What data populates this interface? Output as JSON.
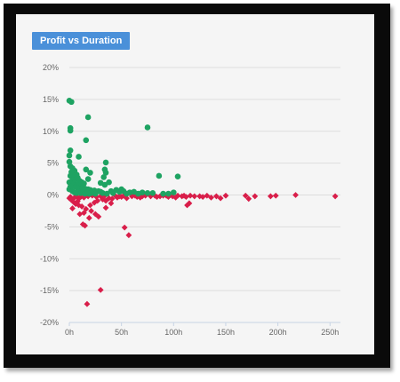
{
  "chart_data": {
    "type": "scatter",
    "title": "Profit vs Duration",
    "xlabel": "",
    "ylabel": "",
    "xlim": [
      0,
      260
    ],
    "ylim": [
      -20,
      20
    ],
    "x_ticks": [
      0,
      50,
      100,
      150,
      200,
      250
    ],
    "x_tick_labels": [
      "0h",
      "50h",
      "100h",
      "150h",
      "200h",
      "250h"
    ],
    "y_ticks": [
      20,
      15,
      10,
      5,
      0,
      -5,
      -10,
      -15,
      -20
    ],
    "y_tick_labels": [
      "20%",
      "15%",
      "10%",
      "5%",
      "0%",
      "-5%",
      "-10%",
      "-15%",
      "-20%"
    ],
    "grid": "horizontal",
    "legend": "none",
    "series": [
      {
        "marker": "circle",
        "color": "#1ea362",
        "points": [
          [
            0,
            14.8
          ],
          [
            2,
            14.6
          ],
          [
            1,
            10.5
          ],
          [
            1,
            10.1
          ],
          [
            18,
            12.2
          ],
          [
            75,
            10.6
          ],
          [
            16,
            8.6
          ],
          [
            1,
            7.0
          ],
          [
            0,
            6.2
          ],
          [
            9,
            6.0
          ],
          [
            35,
            5.1
          ],
          [
            34,
            4.0
          ],
          [
            35,
            3.5
          ],
          [
            33,
            2.8
          ],
          [
            38,
            2.0
          ],
          [
            34,
            1.6
          ],
          [
            30,
            1.9
          ],
          [
            18,
            2.5
          ],
          [
            20,
            3.5
          ],
          [
            16,
            4.0
          ],
          [
            86,
            3.0
          ],
          [
            104,
            2.9
          ],
          [
            0,
            5.2
          ],
          [
            1,
            4.5
          ],
          [
            3,
            4.2
          ],
          [
            5,
            3.8
          ],
          [
            7,
            3.2
          ],
          [
            2,
            3.6
          ],
          [
            4,
            2.9
          ],
          [
            6,
            2.5
          ],
          [
            8,
            2.7
          ],
          [
            10,
            2.2
          ],
          [
            12,
            2.0
          ],
          [
            14,
            1.8
          ],
          [
            1,
            3.0
          ],
          [
            3,
            2.4
          ],
          [
            5,
            1.9
          ],
          [
            7,
            1.6
          ],
          [
            9,
            1.4
          ],
          [
            11,
            1.2
          ],
          [
            13,
            1.1
          ],
          [
            15,
            1.0
          ],
          [
            0,
            2.0
          ],
          [
            2,
            1.7
          ],
          [
            4,
            1.5
          ],
          [
            6,
            1.3
          ],
          [
            8,
            1.1
          ],
          [
            10,
            0.9
          ],
          [
            12,
            0.8
          ],
          [
            16,
            0.7
          ],
          [
            18,
            0.9
          ],
          [
            20,
            0.8
          ],
          [
            22,
            0.6
          ],
          [
            24,
            0.7
          ],
          [
            26,
            0.5
          ],
          [
            28,
            0.6
          ],
          [
            30,
            0.5
          ],
          [
            40,
            0.6
          ],
          [
            45,
            0.8
          ],
          [
            48,
            0.5
          ],
          [
            50,
            0.9
          ],
          [
            52,
            0.6
          ],
          [
            58,
            0.4
          ],
          [
            62,
            0.5
          ],
          [
            70,
            0.4
          ],
          [
            80,
            0.3
          ],
          [
            90,
            0.2
          ],
          [
            100,
            0.4
          ],
          [
            0,
            0.9
          ],
          [
            1,
            1.3
          ],
          [
            3,
            0.6
          ],
          [
            5,
            0.4
          ],
          [
            7,
            0.3
          ],
          [
            9,
            0.5
          ],
          [
            11,
            0.3
          ],
          [
            13,
            0.4
          ],
          [
            15,
            0.2
          ],
          [
            17,
            0.3
          ],
          [
            19,
            0.2
          ],
          [
            21,
            0.3
          ],
          [
            25,
            0.2
          ],
          [
            32,
            0.3
          ],
          [
            36,
            0.2
          ],
          [
            42,
            0.3
          ],
          [
            55,
            0.2
          ],
          [
            66,
            0.2
          ],
          [
            75,
            0.3
          ],
          [
            95,
            0.2
          ]
        ]
      },
      {
        "marker": "diamond",
        "color": "#d91e4a",
        "points": [
          [
            17,
            -17.1
          ],
          [
            30,
            -14.9
          ],
          [
            57,
            -6.3
          ],
          [
            53,
            -5.1
          ],
          [
            15,
            -4.8
          ],
          [
            13,
            -4.6
          ],
          [
            28,
            -3.4
          ],
          [
            10,
            -3.0
          ],
          [
            21,
            -2.5
          ],
          [
            3,
            -2.1
          ],
          [
            6,
            -1.4
          ],
          [
            8,
            -1.0
          ],
          [
            12,
            -1.8
          ],
          [
            16,
            -2.2
          ],
          [
            20,
            -1.6
          ],
          [
            24,
            -1.2
          ],
          [
            27,
            -0.9
          ],
          [
            32,
            -0.7
          ],
          [
            35,
            -0.9
          ],
          [
            38,
            -0.5
          ],
          [
            41,
            -0.6
          ],
          [
            46,
            -0.4
          ],
          [
            50,
            -0.3
          ],
          [
            55,
            -0.5
          ],
          [
            60,
            -0.2
          ],
          [
            65,
            -0.3
          ],
          [
            70,
            -0.2
          ],
          [
            73,
            -0.1
          ],
          [
            78,
            -0.2
          ],
          [
            82,
            -0.1
          ],
          [
            87,
            -0.2
          ],
          [
            90,
            -0.1
          ],
          [
            95,
            -0.3
          ],
          [
            99,
            -0.2
          ],
          [
            104,
            -0.1
          ],
          [
            108,
            -0.2
          ],
          [
            112,
            -0.3
          ],
          [
            116,
            -0.1
          ],
          [
            120,
            -0.2
          ],
          [
            115,
            -1.3
          ],
          [
            113,
            -1.6
          ],
          [
            125,
            -0.2
          ],
          [
            132,
            -0.1
          ],
          [
            136,
            -0.4
          ],
          [
            141,
            -0.2
          ],
          [
            145,
            -0.5
          ],
          [
            150,
            -0.1
          ],
          [
            169,
            -0.1
          ],
          [
            172,
            -0.6
          ],
          [
            178,
            -0.2
          ],
          [
            193,
            -0.2
          ],
          [
            198,
            -0.1
          ],
          [
            217,
            0.0
          ],
          [
            255,
            -0.2
          ],
          [
            0,
            -0.5
          ],
          [
            2,
            -0.8
          ],
          [
            4,
            -1.1
          ],
          [
            1,
            -0.3
          ],
          [
            5,
            -0.4
          ],
          [
            7,
            -0.2
          ],
          [
            9,
            -0.6
          ],
          [
            11,
            -0.3
          ],
          [
            14,
            -0.4
          ],
          [
            18,
            -0.2
          ],
          [
            22,
            -0.1
          ],
          [
            26,
            -0.3
          ],
          [
            30,
            -0.2
          ],
          [
            34,
            -0.1
          ],
          [
            44,
            -0.1
          ],
          [
            48,
            -0.2
          ],
          [
            52,
            -0.1
          ],
          [
            63,
            -0.1
          ],
          [
            68,
            -0.4
          ],
          [
            84,
            -0.3
          ],
          [
            93,
            -0.1
          ],
          [
            102,
            -0.4
          ],
          [
            110,
            -0.1
          ],
          [
            128,
            -0.3
          ],
          [
            19,
            -3.6
          ],
          [
            25,
            -3.0
          ],
          [
            14,
            -2.8
          ],
          [
            35,
            -2.0
          ],
          [
            40,
            -1.3
          ],
          [
            9,
            -1.6
          ]
        ]
      }
    ]
  }
}
